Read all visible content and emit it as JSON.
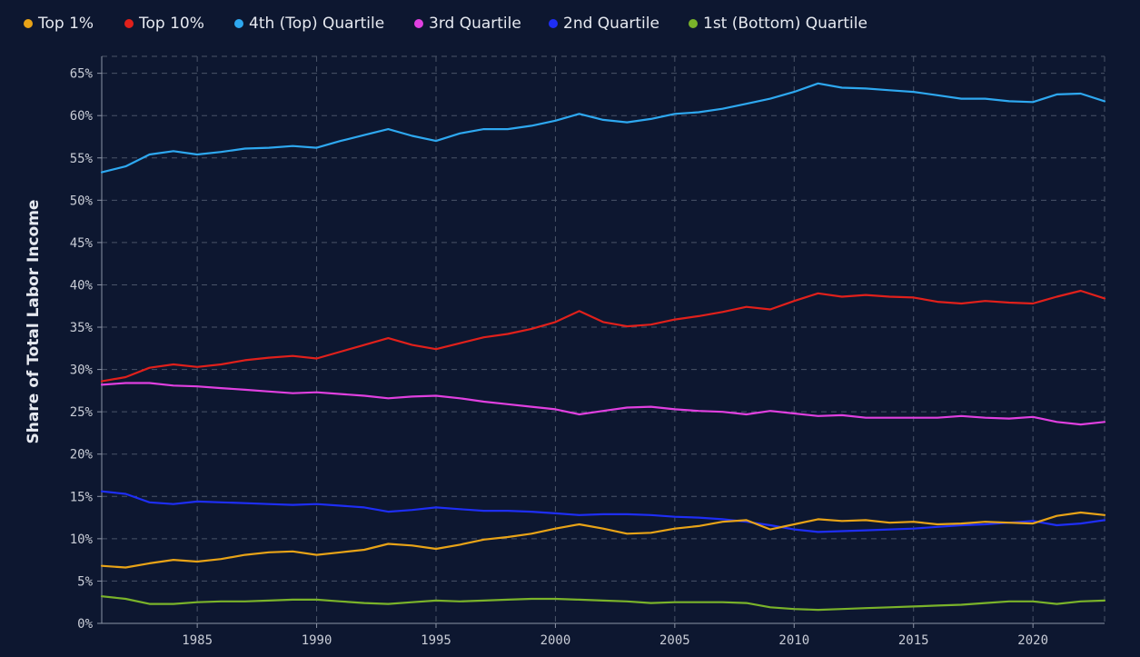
{
  "chart_data": {
    "type": "line",
    "title": "",
    "xlabel": "",
    "ylabel": "Share of Total Labor Income",
    "xlim": [
      1981,
      2023
    ],
    "ylim": [
      0,
      67
    ],
    "x_ticks": [
      1985,
      1990,
      1995,
      2000,
      2005,
      2010,
      2015,
      2020
    ],
    "y_ticks": [
      0,
      5,
      10,
      15,
      20,
      25,
      30,
      35,
      40,
      45,
      50,
      55,
      60,
      65
    ],
    "y_tick_suffix": "%",
    "grid": true,
    "legend_position": "top",
    "series": [
      {
        "name": "Top 1%",
        "color": "#e8a317",
        "points": [
          [
            1981,
            6.8
          ],
          [
            1982,
            6.6
          ],
          [
            1983,
            7.1
          ],
          [
            1984,
            7.5
          ],
          [
            1985,
            7.3
          ],
          [
            1986,
            7.6
          ],
          [
            1987,
            8.1
          ],
          [
            1988,
            8.4
          ],
          [
            1989,
            8.5
          ],
          [
            1990,
            8.1
          ],
          [
            1991,
            8.4
          ],
          [
            1992,
            8.7
          ],
          [
            1993,
            9.4
          ],
          [
            1994,
            9.2
          ],
          [
            1995,
            8.8
          ],
          [
            1996,
            9.3
          ],
          [
            1997,
            9.9
          ],
          [
            1998,
            10.2
          ],
          [
            1999,
            10.6
          ],
          [
            2000,
            11.2
          ],
          [
            2001,
            11.7
          ],
          [
            2002,
            11.2
          ],
          [
            2003,
            10.6
          ],
          [
            2004,
            10.7
          ],
          [
            2005,
            11.2
          ],
          [
            2006,
            11.5
          ],
          [
            2007,
            12.0
          ],
          [
            2008,
            12.2
          ],
          [
            2009,
            11.1
          ],
          [
            2010,
            11.7
          ],
          [
            2011,
            12.3
          ],
          [
            2012,
            12.1
          ],
          [
            2013,
            12.2
          ],
          [
            2014,
            11.9
          ],
          [
            2015,
            12.0
          ],
          [
            2016,
            11.7
          ],
          [
            2017,
            11.8
          ],
          [
            2018,
            12.0
          ],
          [
            2019,
            11.9
          ],
          [
            2020,
            11.8
          ],
          [
            2021,
            12.7
          ],
          [
            2022,
            13.1
          ],
          [
            2023,
            12.8
          ]
        ]
      },
      {
        "name": "Top 10%",
        "color": "#e0201b",
        "points": [
          [
            1981,
            28.6
          ],
          [
            1982,
            29.1
          ],
          [
            1983,
            30.2
          ],
          [
            1984,
            30.6
          ],
          [
            1985,
            30.3
          ],
          [
            1986,
            30.6
          ],
          [
            1987,
            31.1
          ],
          [
            1988,
            31.4
          ],
          [
            1989,
            31.6
          ],
          [
            1990,
            31.3
          ],
          [
            1991,
            32.1
          ],
          [
            1992,
            32.9
          ],
          [
            1993,
            33.7
          ],
          [
            1994,
            32.9
          ],
          [
            1995,
            32.4
          ],
          [
            1996,
            33.1
          ],
          [
            1997,
            33.8
          ],
          [
            1998,
            34.2
          ],
          [
            1999,
            34.8
          ],
          [
            2000,
            35.6
          ],
          [
            2001,
            36.9
          ],
          [
            2002,
            35.6
          ],
          [
            2003,
            35.1
          ],
          [
            2004,
            35.3
          ],
          [
            2005,
            35.9
          ],
          [
            2006,
            36.3
          ],
          [
            2007,
            36.8
          ],
          [
            2008,
            37.4
          ],
          [
            2009,
            37.1
          ],
          [
            2010,
            38.1
          ],
          [
            2011,
            39.0
          ],
          [
            2012,
            38.6
          ],
          [
            2013,
            38.8
          ],
          [
            2014,
            38.6
          ],
          [
            2015,
            38.5
          ],
          [
            2016,
            38.0
          ],
          [
            2017,
            37.8
          ],
          [
            2018,
            38.1
          ],
          [
            2019,
            37.9
          ],
          [
            2020,
            37.8
          ],
          [
            2021,
            38.6
          ],
          [
            2022,
            39.3
          ],
          [
            2023,
            38.4
          ]
        ]
      },
      {
        "name": "4th (Top) Quartile",
        "color": "#2ea8f0",
        "points": [
          [
            1981,
            53.3
          ],
          [
            1982,
            54.0
          ],
          [
            1983,
            55.4
          ],
          [
            1984,
            55.8
          ],
          [
            1985,
            55.4
          ],
          [
            1986,
            55.7
          ],
          [
            1987,
            56.1
          ],
          [
            1988,
            56.2
          ],
          [
            1989,
            56.4
          ],
          [
            1990,
            56.2
          ],
          [
            1991,
            57.0
          ],
          [
            1992,
            57.7
          ],
          [
            1993,
            58.4
          ],
          [
            1994,
            57.6
          ],
          [
            1995,
            57.0
          ],
          [
            1996,
            57.9
          ],
          [
            1997,
            58.4
          ],
          [
            1998,
            58.4
          ],
          [
            1999,
            58.8
          ],
          [
            2000,
            59.4
          ],
          [
            2001,
            60.2
          ],
          [
            2002,
            59.5
          ],
          [
            2003,
            59.2
          ],
          [
            2004,
            59.6
          ],
          [
            2005,
            60.2
          ],
          [
            2006,
            60.4
          ],
          [
            2007,
            60.8
          ],
          [
            2008,
            61.4
          ],
          [
            2009,
            62.0
          ],
          [
            2010,
            62.8
          ],
          [
            2011,
            63.8
          ],
          [
            2012,
            63.3
          ],
          [
            2013,
            63.2
          ],
          [
            2014,
            63.0
          ],
          [
            2015,
            62.8
          ],
          [
            2016,
            62.4
          ],
          [
            2017,
            62.0
          ],
          [
            2018,
            62.0
          ],
          [
            2019,
            61.7
          ],
          [
            2020,
            61.6
          ],
          [
            2021,
            62.5
          ],
          [
            2022,
            62.6
          ],
          [
            2023,
            61.7
          ]
        ]
      },
      {
        "name": "3rd Quartile",
        "color": "#e040e0",
        "points": [
          [
            1981,
            28.2
          ],
          [
            1982,
            28.4
          ],
          [
            1983,
            28.4
          ],
          [
            1984,
            28.1
          ],
          [
            1985,
            28.0
          ],
          [
            1986,
            27.8
          ],
          [
            1987,
            27.6
          ],
          [
            1988,
            27.4
          ],
          [
            1989,
            27.2
          ],
          [
            1990,
            27.3
          ],
          [
            1991,
            27.1
          ],
          [
            1992,
            26.9
          ],
          [
            1993,
            26.6
          ],
          [
            1994,
            26.8
          ],
          [
            1995,
            26.9
          ],
          [
            1996,
            26.6
          ],
          [
            1997,
            26.2
          ],
          [
            1998,
            25.9
          ],
          [
            1999,
            25.6
          ],
          [
            2000,
            25.3
          ],
          [
            2001,
            24.7
          ],
          [
            2002,
            25.1
          ],
          [
            2003,
            25.5
          ],
          [
            2004,
            25.6
          ],
          [
            2005,
            25.3
          ],
          [
            2006,
            25.1
          ],
          [
            2007,
            25.0
          ],
          [
            2008,
            24.7
          ],
          [
            2009,
            25.1
          ],
          [
            2010,
            24.8
          ],
          [
            2011,
            24.5
          ],
          [
            2012,
            24.6
          ],
          [
            2013,
            24.3
          ],
          [
            2014,
            24.3
          ],
          [
            2015,
            24.3
          ],
          [
            2016,
            24.3
          ],
          [
            2017,
            24.5
          ],
          [
            2018,
            24.3
          ],
          [
            2019,
            24.2
          ],
          [
            2020,
            24.4
          ],
          [
            2021,
            23.8
          ],
          [
            2022,
            23.5
          ],
          [
            2023,
            23.8
          ]
        ]
      },
      {
        "name": "2nd Quartile",
        "color": "#1e2ef5",
        "points": [
          [
            1981,
            15.6
          ],
          [
            1982,
            15.3
          ],
          [
            1983,
            14.3
          ],
          [
            1984,
            14.1
          ],
          [
            1985,
            14.4
          ],
          [
            1986,
            14.3
          ],
          [
            1987,
            14.2
          ],
          [
            1988,
            14.1
          ],
          [
            1989,
            14.0
          ],
          [
            1990,
            14.1
          ],
          [
            1991,
            13.9
          ],
          [
            1992,
            13.7
          ],
          [
            1993,
            13.2
          ],
          [
            1994,
            13.4
          ],
          [
            1995,
            13.7
          ],
          [
            1996,
            13.5
          ],
          [
            1997,
            13.3
          ],
          [
            1998,
            13.3
          ],
          [
            1999,
            13.2
          ],
          [
            2000,
            13.0
          ],
          [
            2001,
            12.8
          ],
          [
            2002,
            12.9
          ],
          [
            2003,
            12.9
          ],
          [
            2004,
            12.8
          ],
          [
            2005,
            12.6
          ],
          [
            2006,
            12.5
          ],
          [
            2007,
            12.3
          ],
          [
            2008,
            12.0
          ],
          [
            2009,
            11.6
          ],
          [
            2010,
            11.1
          ],
          [
            2011,
            10.8
          ],
          [
            2012,
            10.9
          ],
          [
            2013,
            11.0
          ],
          [
            2014,
            11.1
          ],
          [
            2015,
            11.2
          ],
          [
            2016,
            11.4
          ],
          [
            2017,
            11.6
          ],
          [
            2018,
            11.7
          ],
          [
            2019,
            11.9
          ],
          [
            2020,
            12.1
          ],
          [
            2021,
            11.6
          ],
          [
            2022,
            11.8
          ],
          [
            2023,
            12.2
          ]
        ]
      },
      {
        "name": "1st (Bottom) Quartile",
        "color": "#7ab32a",
        "points": [
          [
            1981,
            3.2
          ],
          [
            1982,
            2.9
          ],
          [
            1983,
            2.3
          ],
          [
            1984,
            2.3
          ],
          [
            1985,
            2.5
          ],
          [
            1986,
            2.6
          ],
          [
            1987,
            2.6
          ],
          [
            1988,
            2.7
          ],
          [
            1989,
            2.8
          ],
          [
            1990,
            2.8
          ],
          [
            1991,
            2.6
          ],
          [
            1992,
            2.4
          ],
          [
            1993,
            2.3
          ],
          [
            1994,
            2.5
          ],
          [
            1995,
            2.7
          ],
          [
            1996,
            2.6
          ],
          [
            1997,
            2.7
          ],
          [
            1998,
            2.8
          ],
          [
            1999,
            2.9
          ],
          [
            2000,
            2.9
          ],
          [
            2001,
            2.8
          ],
          [
            2002,
            2.7
          ],
          [
            2003,
            2.6
          ],
          [
            2004,
            2.4
          ],
          [
            2005,
            2.5
          ],
          [
            2006,
            2.5
          ],
          [
            2007,
            2.5
          ],
          [
            2008,
            2.4
          ],
          [
            2009,
            1.9
          ],
          [
            2010,
            1.7
          ],
          [
            2011,
            1.6
          ],
          [
            2012,
            1.7
          ],
          [
            2013,
            1.8
          ],
          [
            2014,
            1.9
          ],
          [
            2015,
            2.0
          ],
          [
            2016,
            2.1
          ],
          [
            2017,
            2.2
          ],
          [
            2018,
            2.4
          ],
          [
            2019,
            2.6
          ],
          [
            2020,
            2.6
          ],
          [
            2021,
            2.3
          ],
          [
            2022,
            2.6
          ],
          [
            2023,
            2.7
          ]
        ]
      }
    ]
  }
}
